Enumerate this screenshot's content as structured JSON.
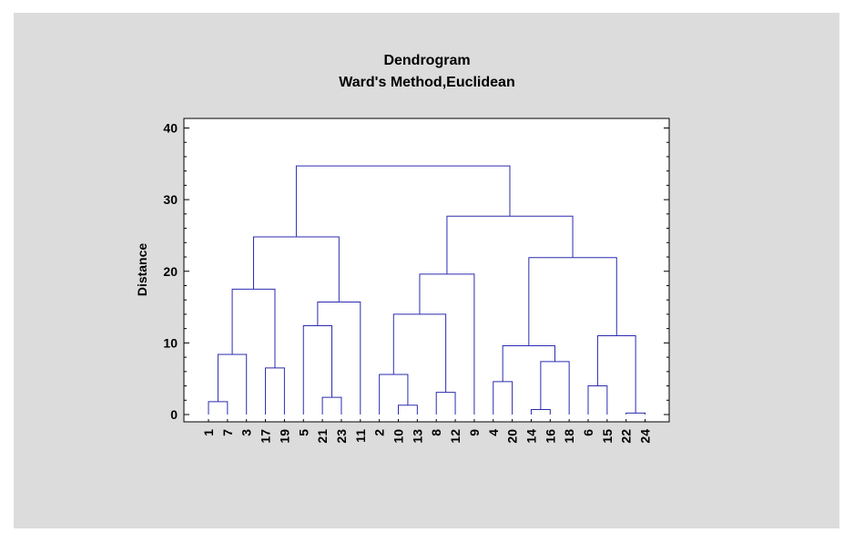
{
  "chart_data": {
    "type": "dendrogram",
    "title": "Dendrogram",
    "subtitle": "Ward's Method,Euclidean",
    "ylabel": "Distance",
    "xlabel": "",
    "ylim": [
      0,
      41
    ],
    "yticks": [
      0,
      10,
      20,
      30,
      40
    ],
    "grid": false,
    "colors": {
      "links": "#2b2bb0",
      "axes": "#000000",
      "plot_bg": "#ffffff",
      "panel_bg": "#dcdcdc"
    },
    "leaf_order": [
      "1",
      "7",
      "3",
      "17",
      "19",
      "5",
      "21",
      "23",
      "11",
      "2",
      "10",
      "13",
      "8",
      "12",
      "9",
      "4",
      "20",
      "14",
      "16",
      "18",
      "6",
      "15",
      "22",
      "24"
    ],
    "merges": [
      {
        "id": "A",
        "left": "1",
        "right": "7",
        "height": 1.8
      },
      {
        "id": "B",
        "left": "A",
        "right": "3",
        "height": 8.4
      },
      {
        "id": "C",
        "left": "17",
        "right": "19",
        "height": 6.5
      },
      {
        "id": "D",
        "left": "B",
        "right": "C",
        "height": 17.5
      },
      {
        "id": "E",
        "left": "21",
        "right": "23",
        "height": 2.4
      },
      {
        "id": "F",
        "left": "5",
        "right": "E",
        "height": 12.4
      },
      {
        "id": "G",
        "left": "F",
        "right": "11",
        "height": 15.7
      },
      {
        "id": "H",
        "left": "D",
        "right": "G",
        "height": 24.8
      },
      {
        "id": "I",
        "left": "10",
        "right": "13",
        "height": 1.3
      },
      {
        "id": "J",
        "left": "2",
        "right": "I",
        "height": 5.6
      },
      {
        "id": "K",
        "left": "8",
        "right": "12",
        "height": 3.1
      },
      {
        "id": "L",
        "left": "J",
        "right": "K",
        "height": 14.0
      },
      {
        "id": "M",
        "left": "L",
        "right": "9",
        "height": 19.6
      },
      {
        "id": "N",
        "left": "4",
        "right": "20",
        "height": 4.6
      },
      {
        "id": "O",
        "left": "14",
        "right": "16",
        "height": 0.7
      },
      {
        "id": "P",
        "left": "O",
        "right": "18",
        "height": 7.4
      },
      {
        "id": "Q",
        "left": "N",
        "right": "P",
        "height": 9.6
      },
      {
        "id": "R",
        "left": "22",
        "right": "24",
        "height": 0.2
      },
      {
        "id": "S",
        "left": "6",
        "right": "15",
        "height": 4.0
      },
      {
        "id": "T",
        "left": "S",
        "right": "R",
        "height": 11.0
      },
      {
        "id": "U",
        "left": "Q",
        "right": "T",
        "height": 21.9
      },
      {
        "id": "V",
        "left": "M",
        "right": "U",
        "height": 27.7
      },
      {
        "id": "W",
        "left": "H",
        "right": "V",
        "height": 34.7
      }
    ]
  }
}
